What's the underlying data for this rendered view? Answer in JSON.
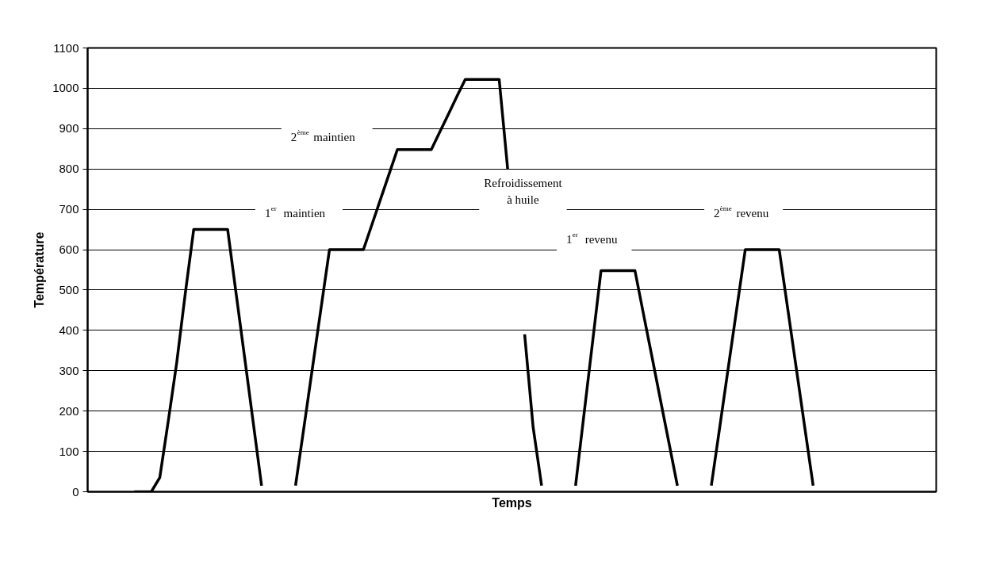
{
  "chart_data": {
    "type": "line",
    "xlabel": "Temps",
    "ylabel": "Température",
    "categories": [
      null,
      null,
      null,
      null,
      null,
      null,
      null,
      null,
      null,
      null,
      null,
      null,
      null,
      null,
      null,
      null,
      null,
      null,
      null,
      null,
      null,
      null,
      null,
      null,
      null,
      null,
      null,
      null,
      null,
      null,
      null,
      null,
      null,
      null,
      null,
      null,
      null,
      null,
      null,
      null,
      null,
      null,
      null,
      null,
      null,
      null,
      null,
      null,
      null,
      null,
      null,
      null,
      null,
      null,
      null,
      null,
      null,
      null,
      null,
      null,
      null,
      null,
      null,
      null,
      null,
      null,
      null,
      null,
      null,
      null,
      null,
      null,
      null,
      null,
      null,
      null,
      null,
      null,
      null,
      null,
      null,
      null,
      null,
      null,
      null,
      null,
      null,
      null,
      null,
      null,
      null,
      null,
      null,
      null,
      null,
      null,
      null,
      null,
      null,
      null
    ],
    "series": [
      {
        "color": "#000000",
        "values": [
          null,
          null,
          null,
          null,
          null,
          0,
          0,
          0,
          35,
          175,
          320,
          490,
          650,
          650,
          650,
          650,
          650,
          491,
          333,
          174,
          15,
          null,
          null,
          null,
          15,
          161,
          308,
          454,
          600,
          600,
          600,
          600,
          600,
          662,
          724,
          786,
          848,
          848,
          848,
          848,
          848,
          892,
          935,
          979,
          1022,
          1022,
          1022,
          1022,
          1022,
          800,
          null,
          390,
          160,
          15,
          null,
          null,
          null,
          15,
          193,
          370,
          548,
          548,
          548,
          548,
          548,
          441,
          335,
          228,
          122,
          15,
          null,
          null,
          null,
          15,
          161,
          308,
          454,
          600,
          600,
          600,
          600,
          600,
          454,
          308,
          161,
          15,
          null,
          null,
          null,
          null,
          null,
          null,
          null,
          null,
          null,
          null,
          null,
          null,
          null,
          null
        ]
      }
    ],
    "ylim": [
      0,
      1100
    ],
    "yticks": [
      0,
      100,
      200,
      300,
      400,
      500,
      600,
      700,
      800,
      900,
      1000,
      1100
    ],
    "tick_labels": "y",
    "grid": "y",
    "marker": "none",
    "line_style": "solid",
    "annotations": [
      "2$^{ème}$ maintien",
      "1$^{er}$ maintien",
      "Refroidissement\nà huile",
      "1$^{er}$ revenu",
      "2$^{ème}$ revenu"
    ]
  }
}
